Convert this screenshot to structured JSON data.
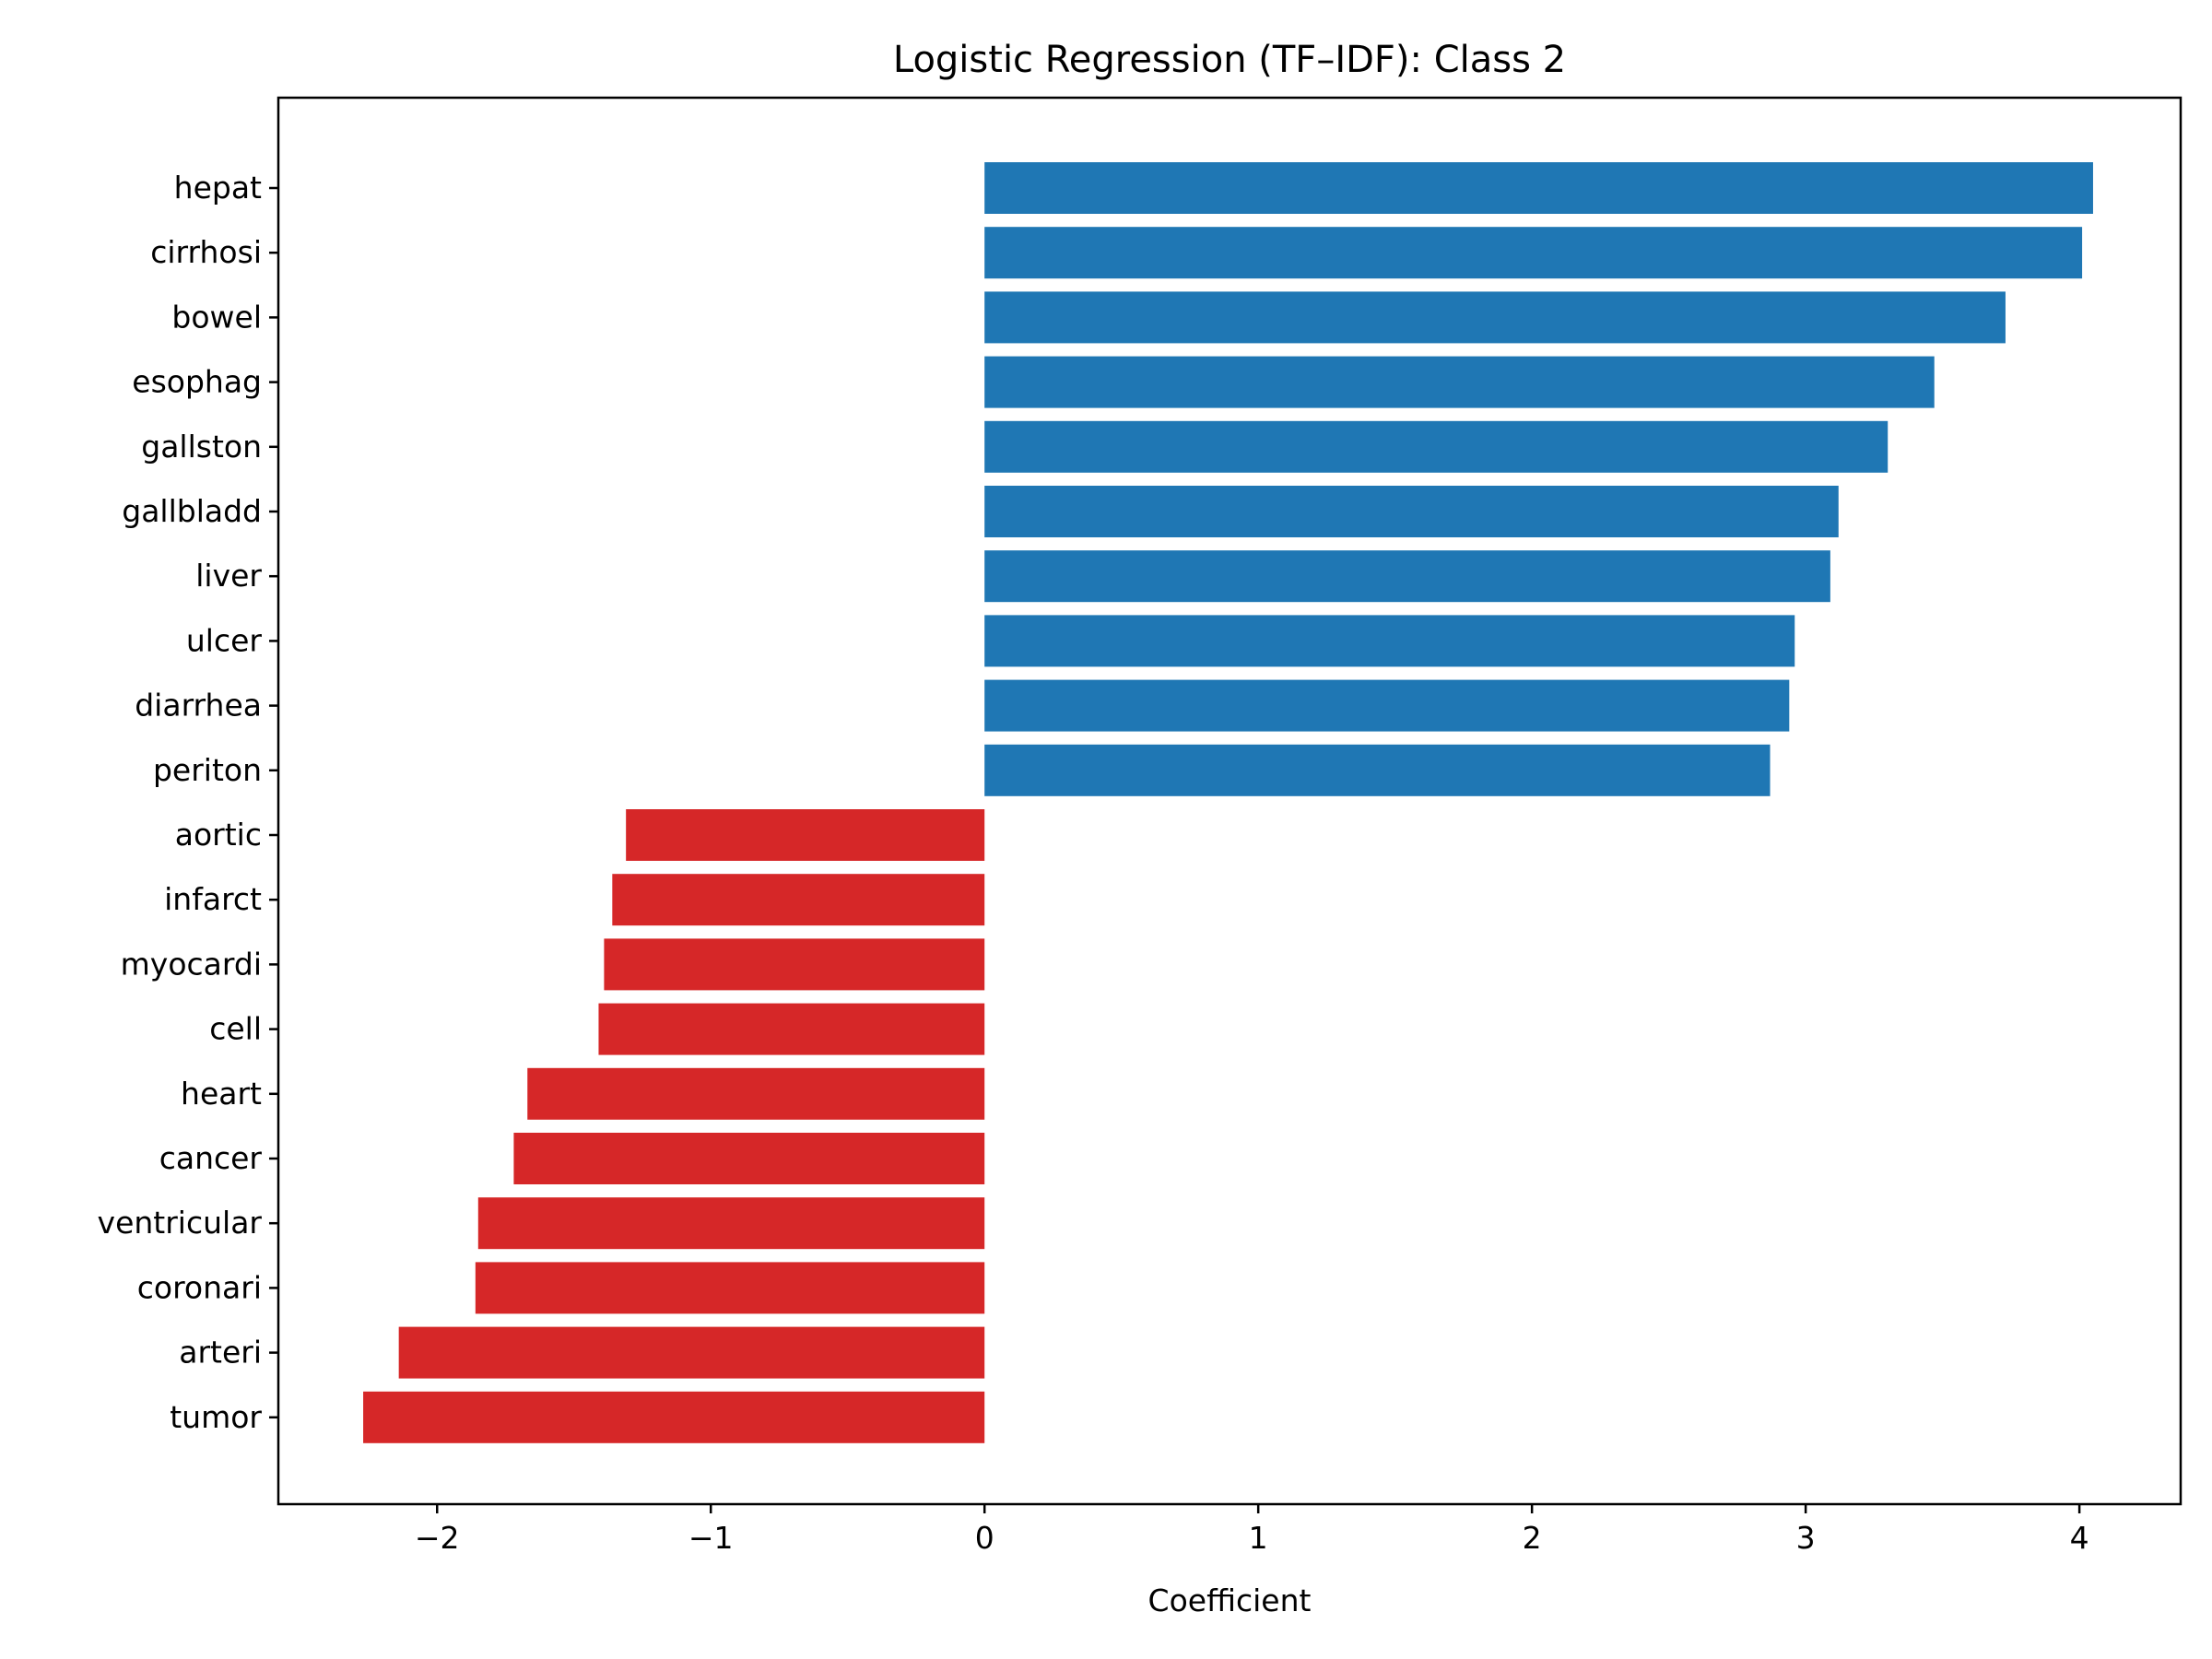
{
  "chart_data": {
    "type": "bar",
    "orientation": "horizontal",
    "title": "Logistic Regression (TF–IDF): Class 2",
    "xlabel": "Coefficient",
    "ylabel": "",
    "xlim": [
      -2.58,
      4.37
    ],
    "xticks": [
      -2,
      -1,
      0,
      1,
      2,
      3,
      4
    ],
    "xtick_labels": [
      "−2",
      "−1",
      "0",
      "1",
      "2",
      "3",
      "4"
    ],
    "grid": false,
    "categories": [
      "hepat",
      "cirrhosi",
      "bowel",
      "esophag",
      "gallston",
      "gallbladd",
      "liver",
      "ulcer",
      "diarrhea",
      "periton",
      "aortic",
      "infarct",
      "myocardi",
      "cell",
      "heart",
      "cancer",
      "ventricular",
      "coronari",
      "arteri",
      "tumor"
    ],
    "values": [
      4.05,
      4.01,
      3.73,
      3.47,
      3.3,
      3.12,
      3.09,
      2.96,
      2.94,
      2.87,
      -1.31,
      -1.36,
      -1.39,
      -1.41,
      -1.67,
      -1.72,
      -1.85,
      -1.86,
      -2.14,
      -2.27
    ],
    "colors": {
      "positive": "#1f77b4",
      "negative": "#d62728"
    }
  }
}
